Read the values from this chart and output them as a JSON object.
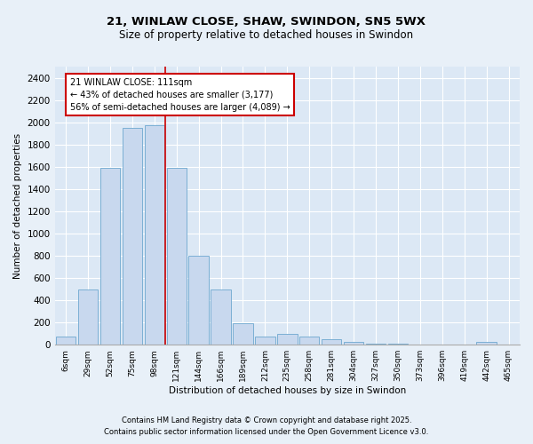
{
  "title": "21, WINLAW CLOSE, SHAW, SWINDON, SN5 5WX",
  "subtitle": "Size of property relative to detached houses in Swindon",
  "xlabel": "Distribution of detached houses by size in Swindon",
  "ylabel": "Number of detached properties",
  "bar_color": "#c8d8ee",
  "bar_edge_color": "#7bafd4",
  "bg_color": "#dce8f5",
  "grid_color": "#ffffff",
  "fig_bg_color": "#e8f0f8",
  "categories": [
    "6sqm",
    "29sqm",
    "52sqm",
    "75sqm",
    "98sqm",
    "121sqm",
    "144sqm",
    "166sqm",
    "189sqm",
    "212sqm",
    "235sqm",
    "258sqm",
    "281sqm",
    "304sqm",
    "327sqm",
    "350sqm",
    "373sqm",
    "396sqm",
    "419sqm",
    "442sqm",
    "465sqm"
  ],
  "values": [
    75,
    500,
    1590,
    1950,
    1970,
    1590,
    800,
    500,
    195,
    75,
    100,
    75,
    50,
    25,
    10,
    8,
    5,
    3,
    3,
    28,
    3
  ],
  "ylim": [
    0,
    2500
  ],
  "yticks": [
    0,
    200,
    400,
    600,
    800,
    1000,
    1200,
    1400,
    1600,
    1800,
    2000,
    2200,
    2400
  ],
  "annotation_title": "21 WINLAW CLOSE: 111sqm",
  "annotation_line1": "← 43% of detached houses are smaller (3,177)",
  "annotation_line2": "56% of semi-detached houses are larger (4,089) →",
  "red_line_color": "#cc0000",
  "footer1": "Contains HM Land Registry data © Crown copyright and database right 2025.",
  "footer2": "Contains public sector information licensed under the Open Government Licence v3.0."
}
